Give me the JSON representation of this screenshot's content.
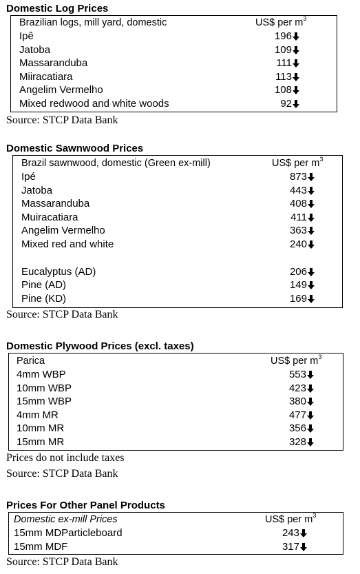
{
  "log": {
    "title": "Domestic Log Prices",
    "header_label": "Brazilian logs, mill yard, domestic",
    "unit_text": "US$ per m",
    "unit_sup": "3",
    "rows": [
      {
        "label": "Ipê",
        "value": "196"
      },
      {
        "label": "Jatoba",
        "value": "109"
      },
      {
        "label": "Massaranduba",
        "value": "111"
      },
      {
        "label": "Miiracatiara",
        "value": "113"
      },
      {
        "label": "Angelim Vermelho",
        "value": "108"
      },
      {
        "label": "Mixed redwood and white woods",
        "value": "92"
      }
    ],
    "source": "Source: STCP Data Bank"
  },
  "sawn": {
    "title": "Domestic Sawnwood Prices",
    "header_label": "Brazil sawnwood, domestic (Green ex-mill)",
    "unit_text": "US$ per m",
    "unit_sup": "3",
    "rows": [
      {
        "label": "Ipé",
        "value": "873"
      },
      {
        "label": "Jatoba",
        "value": "443"
      },
      {
        "label": "Massaranduba",
        "value": "408"
      },
      {
        "label": "Muiracatiara",
        "value": "411"
      },
      {
        "label": "Angelim Vermelho",
        "value": "363"
      },
      {
        "label": "Mixed red and white",
        "value": "240"
      },
      {
        "label": "Eucalyptus (AD)",
        "value": "206"
      },
      {
        "label": "Pine (AD)",
        "value": "149"
      },
      {
        "label": "Pine (KD)",
        "value": "169"
      }
    ],
    "source": "Source: STCP Data Bank"
  },
  "ply": {
    "title": "Domestic Plywood Prices (excl. taxes)",
    "header_label": "Parica",
    "unit_text": "US$ per m",
    "unit_sup": "3",
    "rows": [
      {
        "label": "4mm WBP",
        "value": "553"
      },
      {
        "label": "10mm WBP",
        "value": "423"
      },
      {
        "label": "15mm WBP",
        "value": "380"
      },
      {
        "label": "4mm MR",
        "value": "477"
      },
      {
        "label": "10mm MR",
        "value": "356"
      },
      {
        "label": "15mm MR",
        "value": "328"
      }
    ],
    "note": "Prices do not include taxes",
    "source": "Source: STCP Data Bank"
  },
  "panel": {
    "title": "Prices For Other Panel Products",
    "header_label": "Domestic ex-mill Prices",
    "unit_text": "US$ per m",
    "unit_sup": "3",
    "rows": [
      {
        "label": "15mm MDParticleboard",
        "value": "243"
      },
      {
        "label": "15mm MDF",
        "value": "317"
      }
    ],
    "source": "Source: STCP Data Bank"
  },
  "icons": {
    "trend": "down-arrow-icon"
  }
}
